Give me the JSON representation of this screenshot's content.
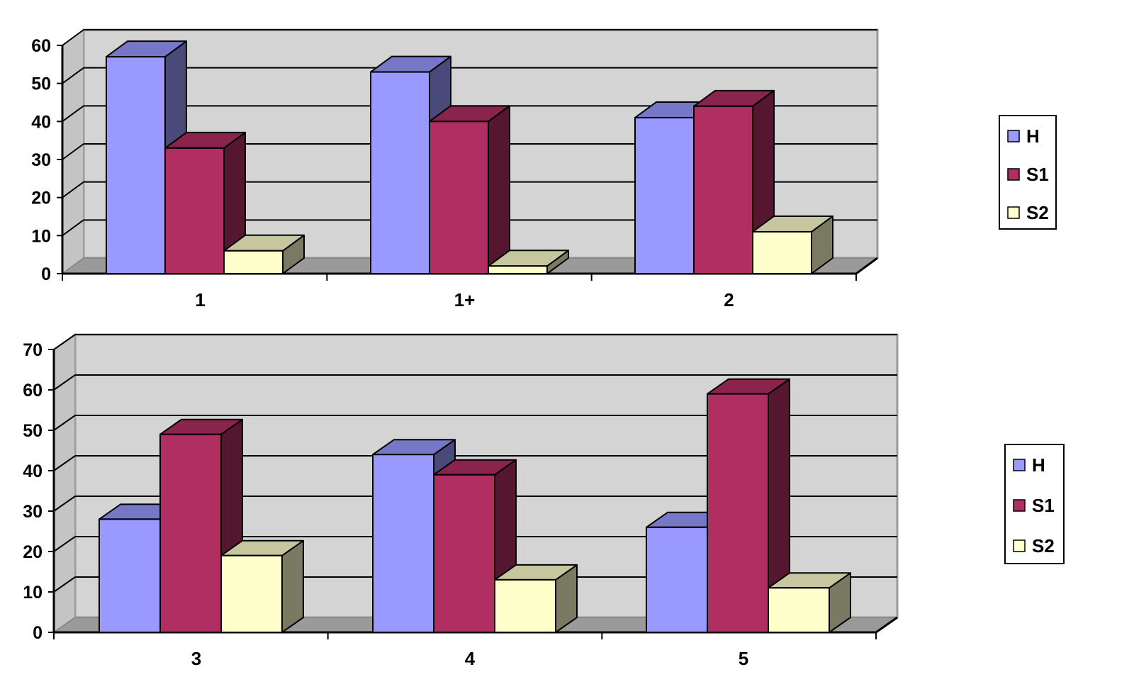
{
  "colors": {
    "H": "#9999ff",
    "S1": "#b12e62",
    "S2": "#ffffcc",
    "wall": "#d4d4d4",
    "floor": "#9a9a9a",
    "grid": "#000000"
  },
  "chart_data": [
    {
      "type": "bar",
      "style": "3d-clustered",
      "title": "",
      "xlabel": "",
      "ylabel": "",
      "categories": [
        "1",
        "1+",
        "2"
      ],
      "series": [
        {
          "name": "H",
          "values": [
            57,
            53,
            41
          ]
        },
        {
          "name": "S1",
          "values": [
            33,
            40,
            44
          ]
        },
        {
          "name": "S2",
          "values": [
            6,
            2,
            11
          ]
        }
      ],
      "ylim": [
        0,
        60
      ],
      "yticks": [
        "0",
        "10",
        "20",
        "30",
        "40",
        "50",
        "60"
      ],
      "grid": true,
      "legend": "right"
    },
    {
      "type": "bar",
      "style": "3d-clustered",
      "title": "",
      "xlabel": "",
      "ylabel": "",
      "categories": [
        "3",
        "4",
        "5"
      ],
      "series": [
        {
          "name": "H",
          "values": [
            28,
            44,
            26
          ]
        },
        {
          "name": "S1",
          "values": [
            49,
            39,
            59
          ]
        },
        {
          "name": "S2",
          "values": [
            19,
            13,
            11
          ]
        }
      ],
      "ylim": [
        0,
        70
      ],
      "yticks": [
        "0",
        "10",
        "20",
        "30",
        "40",
        "50",
        "60",
        "70"
      ],
      "grid": true,
      "legend": "right"
    }
  ]
}
